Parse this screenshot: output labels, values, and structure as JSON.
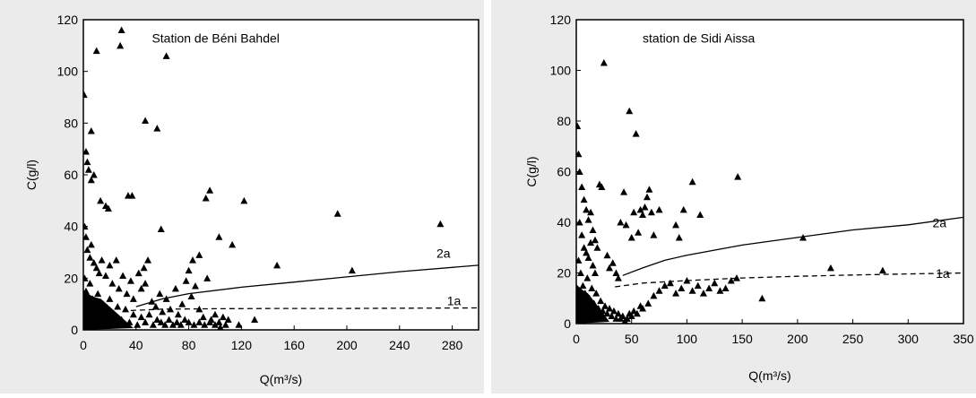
{
  "chart_data": [
    {
      "type": "scatter",
      "title": "Station de Béni Bahdel",
      "xlabel": "Q(m³/s)",
      "ylabel": "C(g/l)",
      "xlim": [
        0,
        300
      ],
      "ylim": [
        0,
        120
      ],
      "xticks": [
        "0",
        "40",
        "80",
        "120",
        "160",
        "200",
        "240",
        "280"
      ],
      "yticks": [
        "0",
        "20",
        "40",
        "60",
        "80",
        "100",
        "120"
      ],
      "grid": false,
      "marker": "triangle",
      "points": [
        [
          0.5,
          91
        ],
        [
          2,
          69
        ],
        [
          3,
          65
        ],
        [
          4,
          62
        ],
        [
          6,
          77
        ],
        [
          6,
          58
        ],
        [
          8,
          60
        ],
        [
          10,
          108
        ],
        [
          13,
          50
        ],
        [
          17,
          48
        ],
        [
          19,
          47
        ],
        [
          28,
          110
        ],
        [
          29,
          116
        ],
        [
          34,
          52
        ],
        [
          37,
          52
        ],
        [
          47,
          81
        ],
        [
          56,
          78
        ],
        [
          59,
          39
        ],
        [
          63,
          106
        ],
        [
          83,
          27
        ],
        [
          88,
          29
        ],
        [
          93,
          51
        ],
        [
          96,
          54
        ],
        [
          103,
          36
        ],
        [
          113,
          33
        ],
        [
          122,
          50
        ],
        [
          147,
          25
        ],
        [
          193,
          45
        ],
        [
          204,
          23
        ],
        [
          271,
          41
        ],
        [
          1,
          40
        ],
        [
          2,
          36
        ],
        [
          3,
          31
        ],
        [
          5,
          28
        ],
        [
          6,
          33
        ],
        [
          8,
          26
        ],
        [
          10,
          24
        ],
        [
          12,
          22
        ],
        [
          14,
          27
        ],
        [
          17,
          21
        ],
        [
          20,
          25
        ],
        [
          22,
          18
        ],
        [
          25,
          27
        ],
        [
          27,
          16
        ],
        [
          30,
          21
        ],
        [
          33,
          14
        ],
        [
          36,
          19
        ],
        [
          38,
          12
        ],
        [
          42,
          22
        ],
        [
          44,
          16
        ],
        [
          46,
          24
        ],
        [
          47,
          18
        ],
        [
          49,
          27
        ],
        [
          52,
          11
        ],
        [
          55,
          9
        ],
        [
          58,
          14
        ],
        [
          60,
          7
        ],
        [
          63,
          12
        ],
        [
          66,
          8
        ],
        [
          70,
          16
        ],
        [
          72,
          6
        ],
        [
          75,
          10
        ],
        [
          78,
          19
        ],
        [
          80,
          23
        ],
        [
          82,
          13
        ],
        [
          85,
          17
        ],
        [
          88,
          8
        ],
        [
          91,
          5
        ],
        [
          94,
          20
        ],
        [
          97,
          4
        ],
        [
          100,
          6
        ],
        [
          103,
          3
        ],
        [
          106,
          5
        ],
        [
          110,
          4
        ],
        [
          118,
          2
        ],
        [
          130,
          4
        ],
        [
          1,
          20
        ],
        [
          2,
          15
        ],
        [
          3,
          10
        ],
        [
          4,
          6
        ],
        [
          5,
          18
        ],
        [
          7,
          12
        ],
        [
          9,
          8
        ],
        [
          11,
          14
        ],
        [
          13,
          5
        ],
        [
          15,
          10
        ],
        [
          18,
          7
        ],
        [
          20,
          12
        ],
        [
          23,
          5
        ],
        [
          26,
          9
        ],
        [
          29,
          4
        ],
        [
          32,
          8
        ],
        [
          35,
          3
        ],
        [
          38,
          6
        ],
        [
          41,
          2
        ],
        [
          44,
          5
        ],
        [
          47,
          3
        ],
        [
          50,
          6
        ],
        [
          53,
          2
        ],
        [
          56,
          4
        ],
        [
          59,
          3
        ],
        [
          62,
          2
        ],
        [
          65,
          4
        ],
        [
          68,
          2
        ],
        [
          71,
          3
        ],
        [
          74,
          2
        ],
        [
          77,
          4
        ],
        [
          80,
          3
        ],
        [
          84,
          2
        ],
        [
          88,
          3
        ],
        [
          92,
          2
        ],
        [
          96,
          3
        ],
        [
          100,
          2
        ],
        [
          104,
          1
        ],
        [
          108,
          2
        ]
      ],
      "dense_region": {
        "x_max": 38,
        "y_max": 12,
        "note": ""
      },
      "curves": [
        {
          "label": "2a",
          "style": "solid",
          "x": [
            40,
            60,
            80,
            120,
            160,
            200,
            240,
            300
          ],
          "y": [
            9,
            12,
            14,
            16.5,
            18.5,
            20.5,
            22.5,
            25
          ]
        },
        {
          "label": "1a",
          "style": "dashed",
          "x": [
            36,
            60,
            100,
            150,
            200,
            250,
            300
          ],
          "y": [
            7.5,
            8,
            8.2,
            8.3,
            8.3,
            8.4,
            8.5
          ]
        }
      ],
      "label_positions": {
        "2a": [
          268,
          28
        ],
        "1a": [
          276,
          9.5
        ]
      },
      "title_position": [
        52,
        116
      ]
    },
    {
      "type": "scatter",
      "title": "station de Sidi Aissa",
      "xlabel": "Q(m³/s)",
      "ylabel": "C(g/l)",
      "xlim": [
        0,
        350
      ],
      "ylim": [
        0,
        120
      ],
      "xticks": [
        "0",
        "50",
        "100",
        "150",
        "200",
        "250",
        "300",
        "350"
      ],
      "yticks": [
        "0",
        "20",
        "40",
        "60",
        "80",
        "100",
        "120"
      ],
      "grid": false,
      "marker": "triangle",
      "points": [
        [
          1,
          78
        ],
        [
          2,
          67
        ],
        [
          3,
          60
        ],
        [
          5,
          54
        ],
        [
          7,
          49
        ],
        [
          9,
          45
        ],
        [
          11,
          41
        ],
        [
          13,
          44
        ],
        [
          15,
          37
        ],
        [
          17,
          33
        ],
        [
          19,
          30
        ],
        [
          21,
          55
        ],
        [
          23,
          54
        ],
        [
          25,
          103
        ],
        [
          28,
          27
        ],
        [
          30,
          22
        ],
        [
          33,
          24
        ],
        [
          36,
          20
        ],
        [
          38,
          18
        ],
        [
          40,
          40
        ],
        [
          43,
          52
        ],
        [
          45,
          39
        ],
        [
          48,
          84
        ],
        [
          50,
          34
        ],
        [
          52,
          44
        ],
        [
          54,
          75
        ],
        [
          56,
          36
        ],
        [
          58,
          45
        ],
        [
          60,
          43
        ],
        [
          62,
          46
        ],
        [
          64,
          50
        ],
        [
          66,
          53
        ],
        [
          68,
          44
        ],
        [
          70,
          35
        ],
        [
          75,
          45
        ],
        [
          90,
          39
        ],
        [
          93,
          34
        ],
        [
          97,
          45
        ],
        [
          105,
          56
        ],
        [
          112,
          43
        ],
        [
          146,
          58
        ],
        [
          168,
          10
        ],
        [
          230,
          22
        ],
        [
          277,
          21
        ],
        [
          205,
          34
        ],
        [
          2,
          25
        ],
        [
          4,
          20
        ],
        [
          6,
          15
        ],
        [
          8,
          12
        ],
        [
          10,
          18
        ],
        [
          12,
          10
        ],
        [
          14,
          14
        ],
        [
          16,
          8
        ],
        [
          18,
          12
        ],
        [
          20,
          6
        ],
        [
          22,
          9
        ],
        [
          24,
          5
        ],
        [
          26,
          7
        ],
        [
          28,
          4
        ],
        [
          30,
          6
        ],
        [
          32,
          3
        ],
        [
          34,
          5
        ],
        [
          36,
          2
        ],
        [
          38,
          4
        ],
        [
          40,
          2
        ],
        [
          42,
          3
        ],
        [
          44,
          1
        ],
        [
          46,
          2
        ],
        [
          48,
          4
        ],
        [
          50,
          3
        ],
        [
          52,
          5
        ],
        [
          55,
          4
        ],
        [
          58,
          7
        ],
        [
          60,
          6
        ],
        [
          65,
          8
        ],
        [
          70,
          11
        ],
        [
          75,
          13
        ],
        [
          80,
          15
        ],
        [
          85,
          16
        ],
        [
          90,
          12
        ],
        [
          95,
          14
        ],
        [
          100,
          17
        ],
        [
          105,
          13
        ],
        [
          110,
          15
        ],
        [
          115,
          12
        ],
        [
          120,
          14
        ],
        [
          125,
          16
        ],
        [
          130,
          13
        ],
        [
          135,
          14
        ],
        [
          140,
          17
        ],
        [
          145,
          18
        ],
        [
          3,
          40
        ],
        [
          5,
          35
        ],
        [
          7,
          30
        ],
        [
          9,
          28
        ],
        [
          11,
          26
        ],
        [
          13,
          32
        ],
        [
          15,
          23
        ],
        [
          17,
          20
        ]
      ],
      "dense_region": {
        "x_max": 30,
        "y_max": 12,
        "note": ""
      },
      "curves": [
        {
          "label": "2a",
          "style": "solid",
          "x": [
            42,
            60,
            80,
            100,
            150,
            200,
            250,
            300,
            350
          ],
          "y": [
            19,
            22,
            25,
            27,
            31,
            34,
            37,
            39,
            42
          ]
        },
        {
          "label": "1a",
          "style": "dashed",
          "x": [
            35,
            60,
            100,
            150,
            200,
            250,
            300,
            350
          ],
          "y": [
            14.5,
            16,
            17,
            18,
            18.7,
            19.2,
            19.6,
            20
          ]
        }
      ],
      "label_positions": {
        "2a": [
          322,
          38
        ],
        "1a": [
          325,
          18
        ]
      },
      "title_position": [
        60,
        116
      ]
    }
  ]
}
